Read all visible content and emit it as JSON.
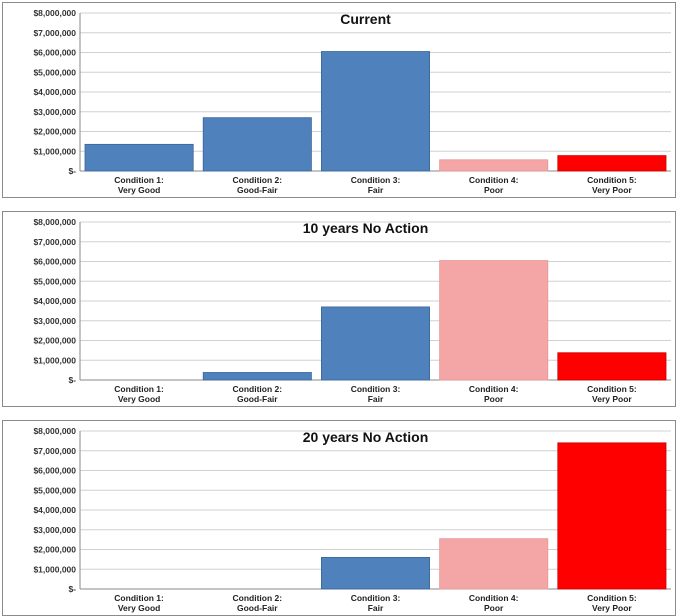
{
  "colors": {
    "good": "#4f81bd",
    "good_edge": "#3a6595",
    "poor": "#f4a6a6",
    "poor_edge": "#e69a9a",
    "very_poor": "#ff0000",
    "very_poor_edge": "#cc0000",
    "grid": "#d0d0d0"
  },
  "chart_data": [
    {
      "type": "bar",
      "title": "Current",
      "categories": [
        [
          "Condition 1:",
          "Very Good"
        ],
        [
          "Condition 2:",
          "Good-Fair"
        ],
        [
          "Condition 3:",
          "Fair"
        ],
        [
          "Condition 4:",
          "Poor"
        ],
        [
          "Condition 5:",
          "Very Poor"
        ]
      ],
      "values": [
        1350000,
        2700000,
        6050000,
        570000,
        780000
      ],
      "ylim": [
        0,
        8000000
      ],
      "yticks": [
        "$-",
        "$1,000,000",
        "$2,000,000",
        "$3,000,000",
        "$4,000,000",
        "$5,000,000",
        "$6,000,000",
        "$7,000,000",
        "$8,000,000"
      ],
      "grid": true
    },
    {
      "type": "bar",
      "title": "10 years No Action",
      "categories": [
        [
          "Condition 1:",
          "Very Good"
        ],
        [
          "Condition 2:",
          "Good-Fair"
        ],
        [
          "Condition 3:",
          "Fair"
        ],
        [
          "Condition 4:",
          "Poor"
        ],
        [
          "Condition 5:",
          "Very Poor"
        ]
      ],
      "values": [
        0,
        380000,
        3700000,
        6050000,
        1380000
      ],
      "ylim": [
        0,
        8000000
      ],
      "yticks": [
        "$-",
        "$1,000,000",
        "$2,000,000",
        "$3,000,000",
        "$4,000,000",
        "$5,000,000",
        "$6,000,000",
        "$7,000,000",
        "$8,000,000"
      ],
      "grid": true
    },
    {
      "type": "bar",
      "title": "20 years No Action",
      "categories": [
        [
          "Condition 1:",
          "Very Good"
        ],
        [
          "Condition 2:",
          "Good-Fair"
        ],
        [
          "Condition 3:",
          "Fair"
        ],
        [
          "Condition 4:",
          "Poor"
        ],
        [
          "Condition 5:",
          "Very Poor"
        ]
      ],
      "values": [
        0,
        0,
        1600000,
        2550000,
        7400000
      ],
      "ylim": [
        0,
        8000000
      ],
      "yticks": [
        "$-",
        "$1,000,000",
        "$2,000,000",
        "$3,000,000",
        "$4,000,000",
        "$5,000,000",
        "$6,000,000",
        "$7,000,000",
        "$8,000,000"
      ],
      "grid": true
    }
  ]
}
